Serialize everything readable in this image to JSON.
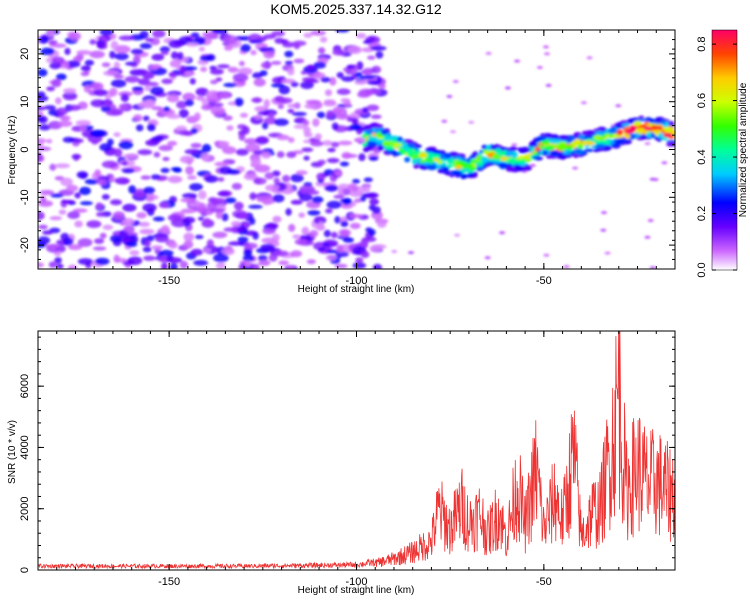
{
  "chart_data": [
    {
      "type": "heatmap",
      "title": "KOM5.2025.337.14.32.G12",
      "xlabel": "Height of straight line (km)",
      "ylabel": "Frequency (Hz)",
      "xlim": [
        -185,
        -15
      ],
      "ylim": [
        -25,
        25
      ],
      "x_ticks": [
        -150,
        -100,
        -50
      ],
      "y_ticks": [
        -20,
        -10,
        0,
        10,
        20
      ],
      "colorbar": {
        "label": "Normalized spectral amplitude",
        "range": [
          0.0,
          0.85
        ],
        "ticks": [
          0.0,
          0.2,
          0.4,
          0.6,
          0.8
        ],
        "tick_labels": [
          "0.0",
          "0.2",
          "0.4",
          "0.6",
          "0.8"
        ]
      },
      "ridge": {
        "description": "signal ridge frequency vs height",
        "x": [
          -98,
          -95,
          -90,
          -85,
          -80,
          -75,
          -70,
          -65,
          -60,
          -55,
          -50,
          -45,
          -40,
          -35,
          -30,
          -25,
          -20,
          -15
        ],
        "y": [
          2,
          3,
          1,
          -1,
          -2,
          -3,
          -4,
          -1,
          -2,
          -2,
          1,
          0.5,
          1,
          2,
          3,
          4.5,
          4.5,
          3
        ],
        "peak_amplitude": 0.85
      },
      "noise_region": {
        "x_range": [
          -185,
          -93
        ],
        "amplitude": 0.3
      }
    },
    {
      "type": "line",
      "xlabel": "Height of straight line (km)",
      "ylabel": "SNR (10 * v/v)",
      "xlim": [
        -185,
        -15
      ],
      "ylim": [
        0,
        7800
      ],
      "x_ticks": [
        -150,
        -100,
        -50
      ],
      "y_ticks": [
        0,
        2000,
        4000,
        6000
      ],
      "color": "#ee3333",
      "series": [
        {
          "name": "SNR",
          "x": [
            -185,
            -170,
            -150,
            -130,
            -110,
            -100,
            -95,
            -90,
            -85,
            -80,
            -78,
            -75,
            -72,
            -70,
            -67,
            -65,
            -62,
            -60,
            -57,
            -55,
            -52,
            -50,
            -47,
            -45,
            -42,
            -40,
            -37,
            -35,
            -32,
            -30,
            -28,
            -25,
            -22,
            -20,
            -17,
            -15
          ],
          "y": [
            150,
            150,
            150,
            150,
            180,
            200,
            300,
            500,
            800,
            1300,
            2700,
            1800,
            2900,
            2100,
            2500,
            1600,
            2600,
            1400,
            3800,
            2000,
            4500,
            1800,
            3300,
            2200,
            5200,
            1500,
            2600,
            2700,
            5400,
            7800,
            3600,
            4600,
            3800,
            4000,
            3500,
            3500
          ]
        }
      ]
    }
  ]
}
